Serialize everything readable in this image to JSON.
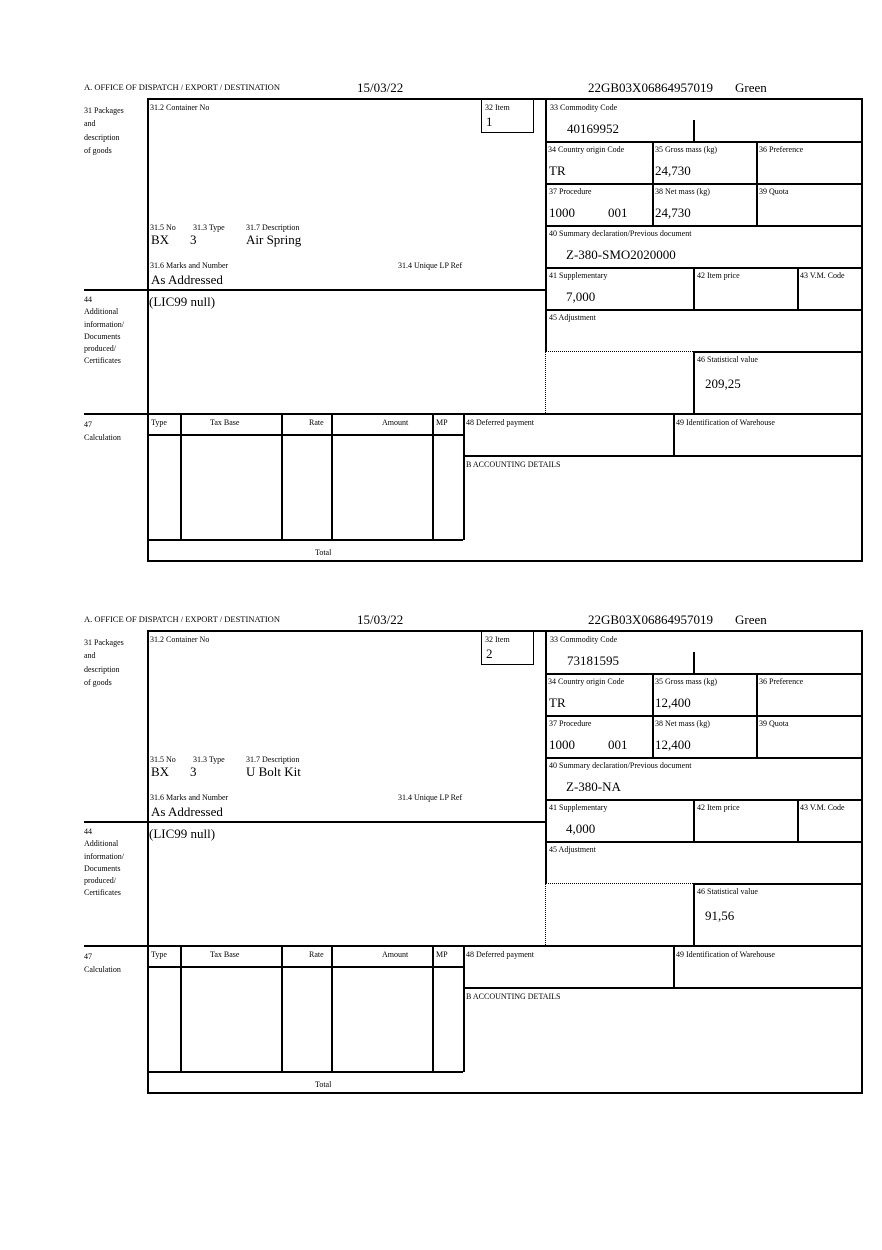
{
  "labels": {
    "office": "A. OFFICE OF DISPATCH / EXPORT / DESTINATION",
    "packages": [
      "31 Packages",
      "and",
      "description",
      "of goods"
    ],
    "container_no": "31.2 Container No",
    "item": "32 Item",
    "commodity_code": "33 Commodity Code",
    "country_origin": "34 Country origin Code",
    "gross_mass": "35 Gross mass (kg)",
    "preference": "36 Preference",
    "procedure": "37 Procedure",
    "net_mass": "38 Net mass (kg)",
    "quota": "39 Quota",
    "summary_declaration": "40 Summary declaration/Previous document",
    "supplementary": "41 Supplementary",
    "item_price": "42 Item price",
    "vm_code": "43 V.M. Code",
    "adjustment": "45 Adjustment",
    "statistical_value": "46 Statistical value",
    "no": "31.5 No",
    "type": "31.3 Type",
    "description": "31.7 Description",
    "marks": "31.6 Marks and Number",
    "unique_lp_ref": "31.4 Unique LP Ref",
    "additional_info": [
      "44",
      "Additional",
      "information/",
      "Documents",
      "produced/",
      "Certificates"
    ],
    "calculation": [
      "47",
      "Calculation"
    ],
    "calc_cols": [
      "Type",
      "Tax Base",
      "Rate",
      "Amount",
      "MP"
    ],
    "total": "Total",
    "deferred_payment": "48 Deferred payment",
    "warehouse": "49 Identification of Warehouse",
    "accounting": "B ACCOUNTING DETAILS"
  },
  "forms": [
    {
      "date": "15/03/22",
      "reference": "22GB03X06864957019",
      "route": "Green",
      "item": "1",
      "commodity_code": "40169952",
      "country_origin": "TR",
      "gross_mass": "24,730",
      "procedure": "1000",
      "procedure_add": "001",
      "net_mass": "24,730",
      "summary_declaration": "Z-380-SMO2020000",
      "supplementary": "7,000",
      "statistical_value": "209,25",
      "no": "BX",
      "type": "3",
      "description": "Air Spring",
      "marks": "As Addressed",
      "additional_info": "(LIC99 null)"
    },
    {
      "date": "15/03/22",
      "reference": "22GB03X06864957019",
      "route": "Green",
      "item": "2",
      "commodity_code": "73181595",
      "country_origin": "TR",
      "gross_mass": "12,400",
      "procedure": "1000",
      "procedure_add": "001",
      "net_mass": "12,400",
      "summary_declaration": "Z-380-NA",
      "supplementary": "4,000",
      "statistical_value": "91,56",
      "no": "BX",
      "type": "3",
      "description": "U Bolt Kit",
      "marks": "As Addressed",
      "additional_info": "(LIC99 null)"
    }
  ]
}
